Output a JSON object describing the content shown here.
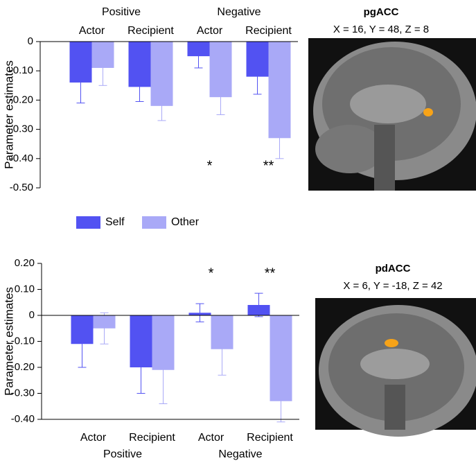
{
  "chart_data": [
    {
      "type": "bar",
      "x_axis_position": "top",
      "y_label": "Parameter estimates",
      "groups": [
        "Positive",
        "Negative"
      ],
      "categories": [
        "Actor",
        "Recipient",
        "Actor",
        "Recipient"
      ],
      "series": [
        {
          "name": "Self",
          "color": "#5252f2",
          "values": [
            -0.14,
            -0.155,
            -0.05,
            -0.12
          ],
          "errors": [
            0.07,
            0.05,
            0.04,
            0.06
          ]
        },
        {
          "name": "Other",
          "color": "#a9a9f7",
          "values": [
            -0.09,
            -0.22,
            -0.19,
            -0.33
          ],
          "errors": [
            0.06,
            0.05,
            0.06,
            0.07
          ]
        }
      ],
      "annotations": [
        null,
        null,
        "*",
        "**"
      ],
      "ylim": [
        -0.5,
        0
      ],
      "yticks": [
        0,
        {
          "value": -0.1,
          "label": "-0.10"
        },
        {
          "value": -0.2,
          "label": "-0.20"
        },
        {
          "value": -0.3,
          "label": "-0.30"
        },
        {
          "value": -0.4,
          "label": "-0.40"
        },
        {
          "value": -0.5,
          "label": "-0.50"
        }
      ]
    },
    {
      "type": "bar",
      "x_axis_position": "bottom",
      "y_label": "Parameter estimates",
      "groups": [
        "Positive",
        "Negative"
      ],
      "categories": [
        "Actor",
        "Recipient",
        "Actor",
        "Recipient"
      ],
      "series": [
        {
          "color": "#5252f2",
          "values": [
            -0.11,
            -0.2,
            0.01,
            0.04
          ],
          "errors": [
            0.09,
            0.1,
            0.035,
            0.045
          ]
        },
        {
          "color": "#a9a9f7",
          "values": [
            -0.05,
            -0.21,
            -0.13,
            -0.33
          ],
          "errors": [
            0.06,
            0.13,
            0.1,
            0.08
          ]
        }
      ],
      "annotations": [
        null,
        null,
        "*",
        "**"
      ],
      "ylim": [
        -0.4,
        0.2
      ],
      "yticks": [
        {
          "value": 0.2,
          "label": "0.20"
        },
        {
          "value": 0.1,
          "label": "0.10"
        },
        0,
        {
          "value": -0.1,
          "label": "-0.10"
        },
        {
          "value": -0.2,
          "label": "-0.20"
        },
        {
          "value": -0.3,
          "label": "-0.30"
        },
        {
          "value": -0.4,
          "label": "-0.40"
        }
      ]
    }
  ],
  "images": [
    {
      "title": "pgACC",
      "coordinates": "X = 16, Y = 48, Z = 8"
    },
    {
      "title": "pdACC",
      "coordinates": "X = 6, Y = -18,  Z = 42"
    }
  ]
}
